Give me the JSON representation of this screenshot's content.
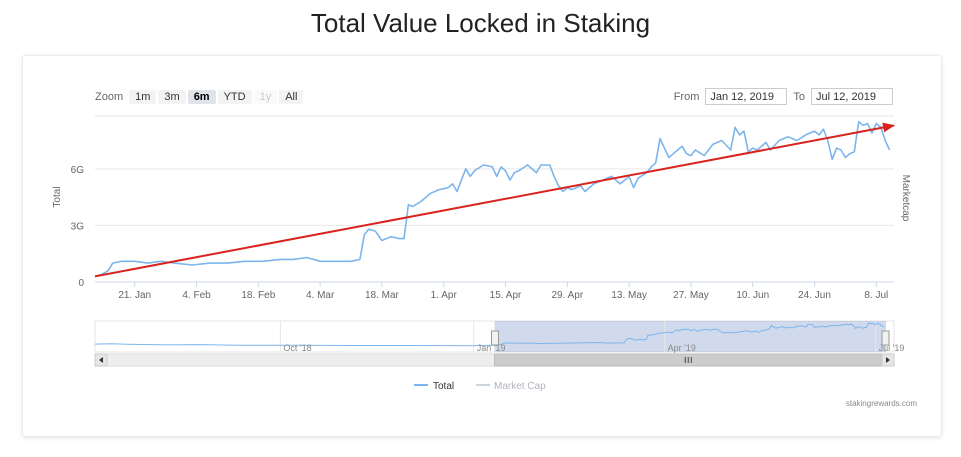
{
  "page": {
    "title": "Total Value Locked in Staking",
    "credits": "stakingrewards.com"
  },
  "range_selector": {
    "zoom_label": "Zoom",
    "buttons": [
      {
        "label": "1m",
        "state": "normal"
      },
      {
        "label": "3m",
        "state": "normal"
      },
      {
        "label": "6m",
        "state": "active"
      },
      {
        "label": "YTD",
        "state": "normal"
      },
      {
        "label": "1y",
        "state": "disabled"
      },
      {
        "label": "All",
        "state": "normal"
      }
    ],
    "from_label": "From",
    "from_value": "Jan 12, 2019",
    "to_label": "To",
    "to_value": "Jul 12, 2019"
  },
  "chart_data": {
    "type": "line",
    "title": "Total Value Locked in Staking",
    "y_axis": {
      "label": "Total",
      "ticks": [
        "0",
        "3G",
        "6G"
      ],
      "tick_values": [
        0,
        3,
        6
      ],
      "unit": "G",
      "range": [
        0,
        8.8
      ]
    },
    "y_axis_right": {
      "label": "Marketcap"
    },
    "x_axis": {
      "ticks": [
        "21. Jan",
        "4. Feb",
        "18. Feb",
        "4. Mar",
        "18. Mar",
        "1. Apr",
        "15. Apr",
        "29. Apr",
        "13. May",
        "27. May",
        "10. Jun",
        "24. Jun",
        "8. Jul"
      ],
      "tick_days": [
        9,
        23,
        37,
        51,
        65,
        79,
        93,
        107,
        121,
        135,
        149,
        163,
        177
      ],
      "start": "Jan 12, 2019",
      "end": "Jul 12, 2019",
      "range_days": [
        0,
        181
      ]
    },
    "grid": true,
    "series": [
      {
        "name": "Total",
        "color": "#7cb5ec",
        "points": [
          [
            0,
            0.3
          ],
          [
            1.5,
            0.4
          ],
          [
            3,
            0.6
          ],
          [
            4,
            1.0
          ],
          [
            6,
            1.1
          ],
          [
            9,
            1.1
          ],
          [
            12,
            1.0
          ],
          [
            15,
            1.1
          ],
          [
            18,
            1.0
          ],
          [
            22,
            0.9
          ],
          [
            26,
            1.0
          ],
          [
            30,
            1.0
          ],
          [
            34,
            1.1
          ],
          [
            38,
            1.1
          ],
          [
            42,
            1.2
          ],
          [
            45,
            1.2
          ],
          [
            48,
            1.3
          ],
          [
            51,
            1.1
          ],
          [
            55,
            1.1
          ],
          [
            58,
            1.1
          ],
          [
            60,
            1.2
          ],
          [
            61,
            2.5
          ],
          [
            62,
            2.8
          ],
          [
            63.5,
            2.7
          ],
          [
            65,
            2.2
          ],
          [
            67,
            2.4
          ],
          [
            69,
            2.3
          ],
          [
            70,
            2.3
          ],
          [
            71,
            4.1
          ],
          [
            72,
            4.0
          ],
          [
            74,
            4.3
          ],
          [
            76,
            4.7
          ],
          [
            78,
            4.9
          ],
          [
            80,
            5.0
          ],
          [
            81,
            5.2
          ],
          [
            82,
            4.8
          ],
          [
            83,
            5.4
          ],
          [
            84,
            6.0
          ],
          [
            85,
            5.6
          ],
          [
            86,
            5.9
          ],
          [
            88,
            6.2
          ],
          [
            90,
            6.1
          ],
          [
            91,
            5.6
          ],
          [
            92,
            6.1
          ],
          [
            93,
            5.9
          ],
          [
            94,
            5.4
          ],
          [
            95,
            5.8
          ],
          [
            96,
            5.9
          ],
          [
            98,
            6.2
          ],
          [
            100,
            5.8
          ],
          [
            101,
            6.2
          ],
          [
            103,
            6.2
          ],
          [
            104,
            5.6
          ],
          [
            105,
            5.1
          ],
          [
            106,
            4.8
          ],
          [
            107,
            5.0
          ],
          [
            108,
            4.9
          ],
          [
            110,
            5.1
          ],
          [
            111,
            4.8
          ],
          [
            113,
            5.2
          ],
          [
            115,
            5.4
          ],
          [
            117,
            5.6
          ],
          [
            118,
            5.4
          ],
          [
            119,
            5.2
          ],
          [
            120,
            5.4
          ],
          [
            121,
            5.6
          ],
          [
            122,
            5.0
          ],
          [
            123,
            5.5
          ],
          [
            125,
            5.8
          ],
          [
            126,
            6.1
          ],
          [
            127,
            6.3
          ],
          [
            128,
            7.6
          ],
          [
            130,
            6.6
          ],
          [
            131,
            6.8
          ],
          [
            133,
            7.2
          ],
          [
            134,
            6.8
          ],
          [
            135,
            6.7
          ],
          [
            136,
            7.0
          ],
          [
            138,
            6.7
          ],
          [
            140,
            7.3
          ],
          [
            142,
            7.5
          ],
          [
            144,
            7.0
          ],
          [
            145,
            8.2
          ],
          [
            146,
            7.8
          ],
          [
            147,
            8.0
          ],
          [
            148,
            6.9
          ],
          [
            149,
            7.1
          ],
          [
            150,
            7.0
          ],
          [
            152,
            7.4
          ],
          [
            153,
            7.0
          ],
          [
            155,
            7.5
          ],
          [
            157,
            7.7
          ],
          [
            159,
            7.5
          ],
          [
            161,
            7.8
          ],
          [
            163,
            8.0
          ],
          [
            164,
            7.8
          ],
          [
            165,
            8.1
          ],
          [
            166,
            7.5
          ],
          [
            167,
            6.5
          ],
          [
            168,
            7.1
          ],
          [
            169,
            7.0
          ],
          [
            170,
            6.6
          ],
          [
            171,
            6.8
          ],
          [
            172,
            6.9
          ],
          [
            173,
            8.5
          ],
          [
            174,
            8.3
          ],
          [
            175,
            8.4
          ],
          [
            176,
            7.9
          ],
          [
            177,
            8.4
          ],
          [
            178,
            8.2
          ],
          [
            179,
            7.5
          ],
          [
            180,
            7.0
          ]
        ]
      },
      {
        "name": "Market Cap",
        "color": "#cbd5e0",
        "points": []
      }
    ],
    "annotations": [
      {
        "type": "arrow",
        "color": "#d9231e",
        "from": [
          0,
          0.3
        ],
        "to": [
          181,
          8.3
        ]
      }
    ],
    "navigator": {
      "ticks": [
        "Oct '18",
        "Jan '19",
        "Apr '19",
        "Jul '19"
      ],
      "tick_positions": [
        0.232,
        0.474,
        0.713,
        0.977
      ],
      "selected_range": [
        0.5,
        0.99
      ]
    },
    "legend": {
      "placement": "bottom-center",
      "items": [
        "Total",
        "Market Cap"
      ]
    }
  }
}
